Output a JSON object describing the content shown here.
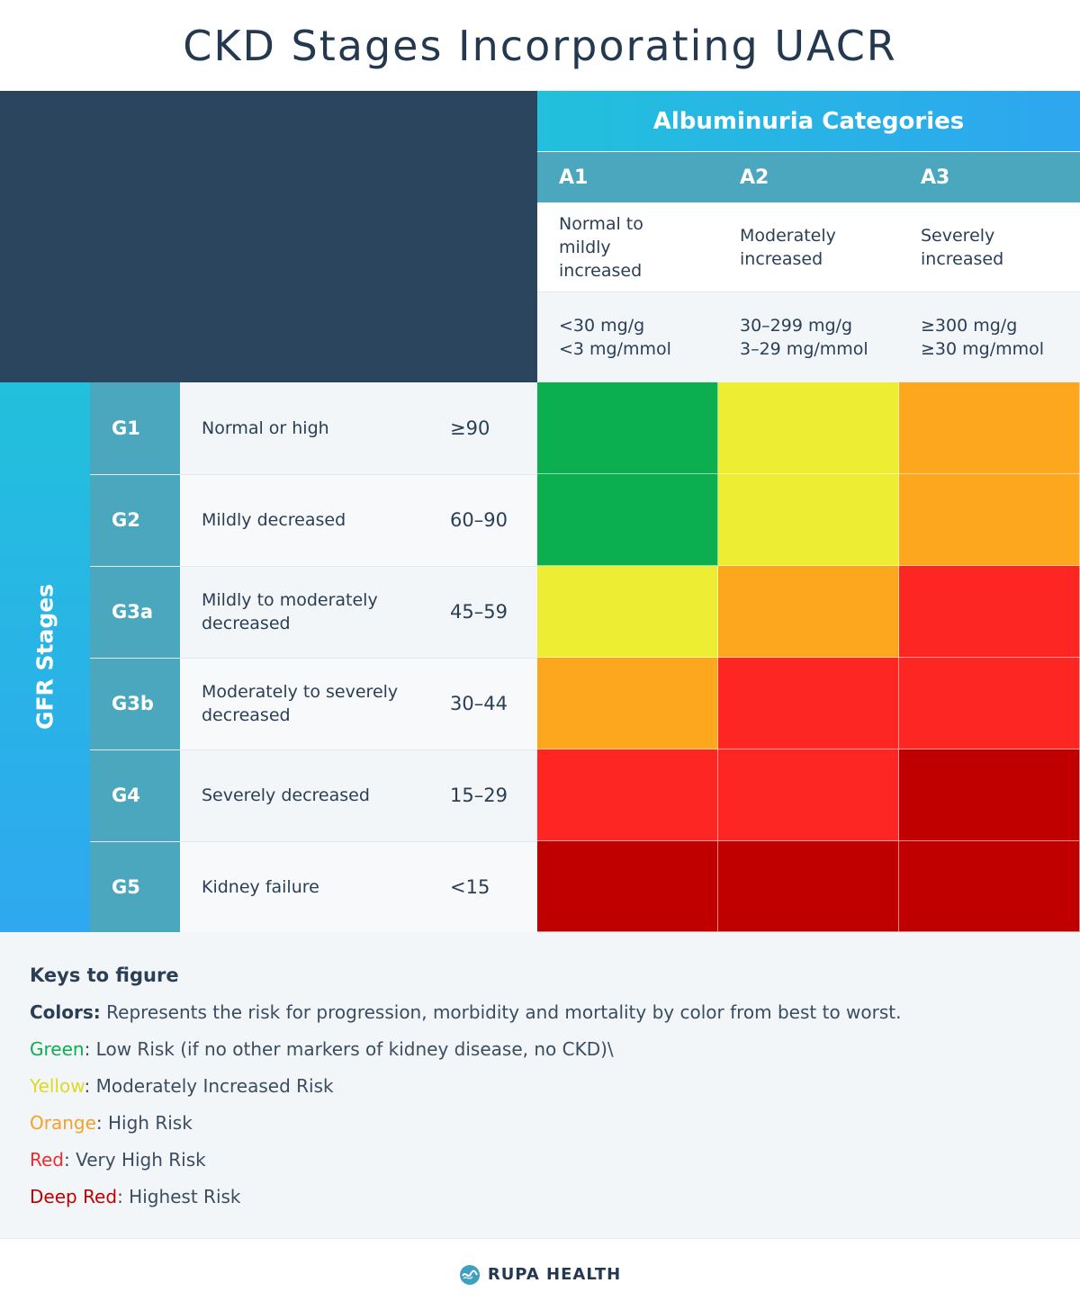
{
  "title": "CKD Stages Incorporating UACR",
  "albuminuria": {
    "header": "Albuminuria Categories",
    "categories": [
      {
        "code": "A1",
        "description": "Normal to\nmildly\nincreased",
        "range": "<30 mg/g\n<3 mg/mmol"
      },
      {
        "code": "A2",
        "description": "Moderately\nincreased",
        "range": "30–299 mg/g\n3–29 mg/mmol"
      },
      {
        "code": "A3",
        "description": "Severely\nincreased",
        "range": "≥300 mg/g\n≥30 mg/mmol"
      }
    ]
  },
  "gfr": {
    "header": "GFR Stages",
    "stages": [
      {
        "code": "G1",
        "description": "Normal or high",
        "range": "≥90"
      },
      {
        "code": "G2",
        "description": "Mildly decreased",
        "range": "60–90"
      },
      {
        "code": "G3a",
        "description": "Mildly to moderately\ndecreased",
        "range": "45–59"
      },
      {
        "code": "G3b",
        "description": "Moderately to severely\ndecreased",
        "range": "30–44"
      },
      {
        "code": "G4",
        "description": "Severely decreased",
        "range": "15–29"
      },
      {
        "code": "G5",
        "description": "Kidney failure",
        "range": "<15"
      }
    ]
  },
  "risk_colors": {
    "green": "#0caf4f",
    "yellow": "#eded33",
    "orange": "#fda71f",
    "red": "#fe2623",
    "deep_red": "#c00000"
  },
  "risk_matrix": [
    [
      "green",
      "yellow",
      "orange"
    ],
    [
      "green",
      "yellow",
      "orange"
    ],
    [
      "yellow",
      "orange",
      "red"
    ],
    [
      "orange",
      "red",
      "red"
    ],
    [
      "red",
      "red",
      "deep_red"
    ],
    [
      "deep_red",
      "deep_red",
      "deep_red"
    ]
  ],
  "keys": {
    "heading": "Keys to figure",
    "colors_label": "Colors:",
    "colors_text": " Represents the risk for progression, morbidity and mortality by color from best to worst.",
    "items": [
      {
        "label": "Green",
        "text": ": Low Risk (if no other markers of kidney disease, no CKD)\\",
        "color": "#0caf4f"
      },
      {
        "label": "Yellow",
        "text": ": Moderately Increased Risk",
        "color": "#dcdc1e"
      },
      {
        "label": "Orange",
        "text": ": High Risk",
        "color": "#f5a02a"
      },
      {
        "label": "Red",
        "text": ": Very High Risk",
        "color": "#f02b2b"
      },
      {
        "label": "Deep Red",
        "text": ": Highest Risk",
        "color": "#c00000"
      }
    ]
  },
  "footer": {
    "brand": "RUPA HEALTH",
    "logo_icon": "rupa-logo-icon"
  }
}
